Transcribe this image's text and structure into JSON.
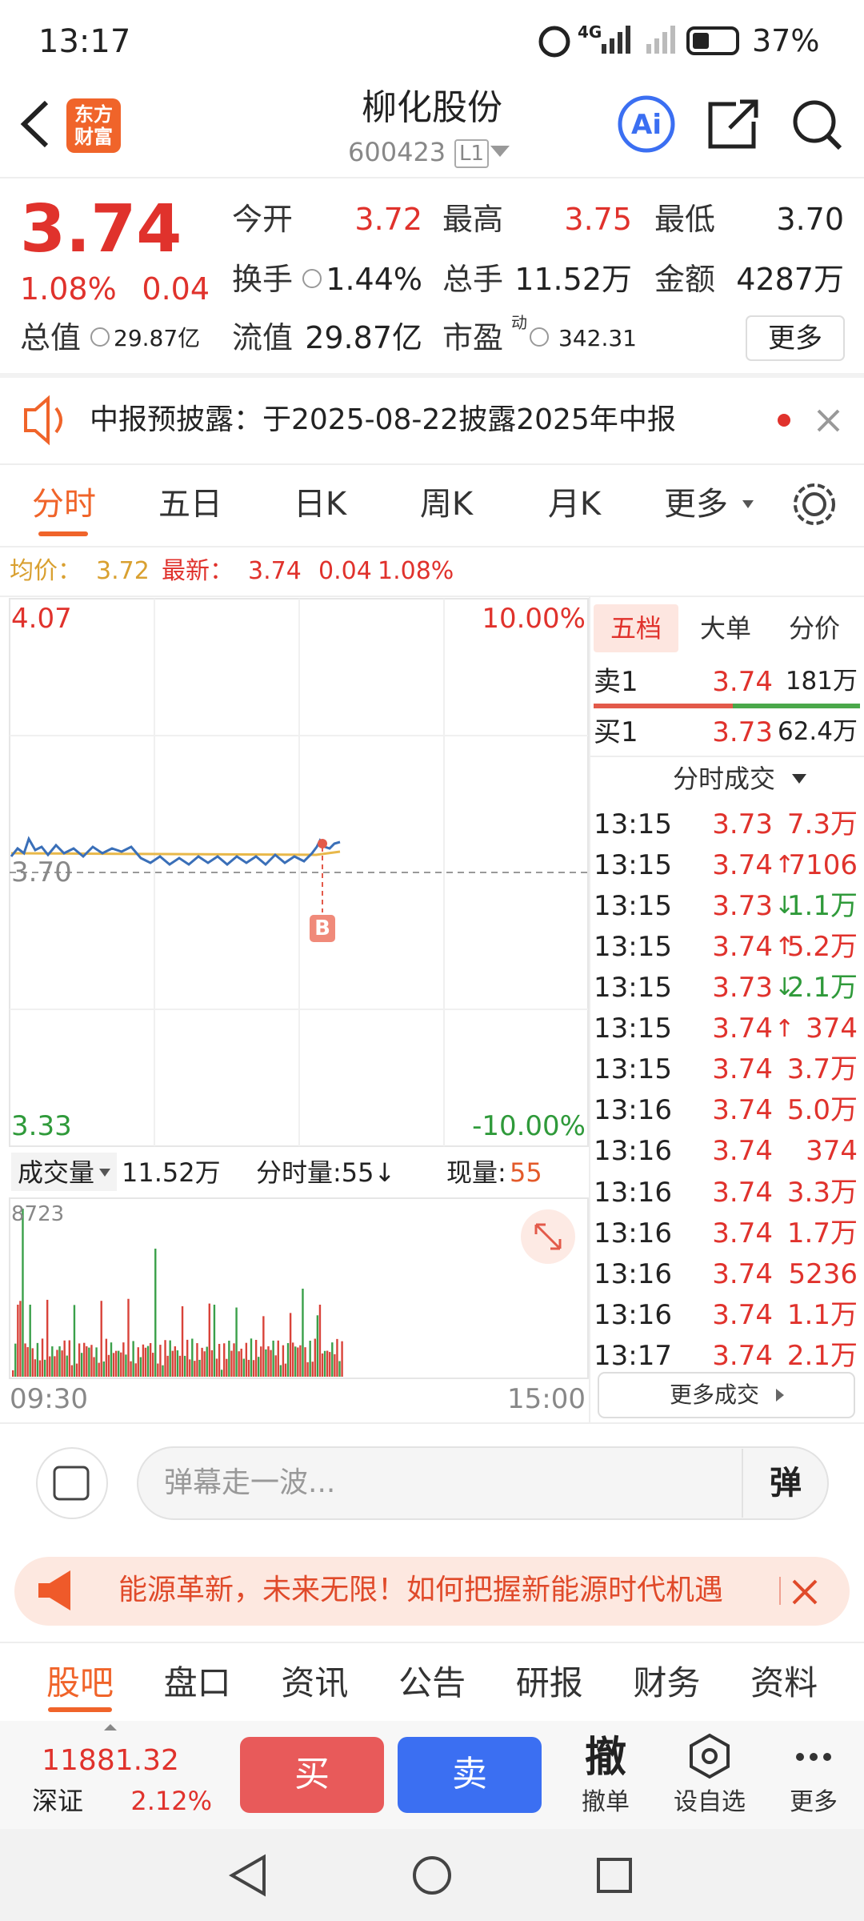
{
  "status_bar": {
    "time": "13:17",
    "network": "4G",
    "battery": "37%"
  },
  "header": {
    "logo": "东方财富",
    "title": "柳化股份",
    "code": "600423",
    "level": "L1"
  },
  "quote": {
    "price": "3.74",
    "change_pct": "1.08%",
    "change": "0.04",
    "fields": [
      {
        "label": "今开",
        "value": "3.72"
      },
      {
        "label": "最高",
        "value": "3.75"
      },
      {
        "label": "最低",
        "value": "3.70"
      },
      {
        "label": "换手",
        "value": "1.44%"
      },
      {
        "label": "总手",
        "value": "11.52万"
      },
      {
        "label": "金额",
        "value": "4287万"
      },
      {
        "label": "总值",
        "value": "29.87亿"
      },
      {
        "label": "流值",
        "value": "29.87亿"
      },
      {
        "label": "市盈",
        "sup": "动",
        "value": "342.31"
      }
    ],
    "more": "更多"
  },
  "notice": "中报预披露：于2025-08-22披露2025年中报",
  "tabs": [
    "分时",
    "五日",
    "日K",
    "周K",
    "月K",
    "更多"
  ],
  "summary": {
    "avg_label": "均价：",
    "avg": "3.72",
    "latest_label": "最新：",
    "latest": "3.74",
    "change": "0.04",
    "pct": "1.08%"
  },
  "chart": {
    "y_top": "4.07",
    "y_mid": "3.70",
    "y_bottom": "3.33",
    "pct_top": "10.00%",
    "pct_bottom": "-10.00%",
    "marker": "B",
    "volume_label": "成交量",
    "volume": "11.52万",
    "interval": "分时量:55↓",
    "current_label": "现量:",
    "current": "55",
    "vol_max": "8723",
    "x_start": "09:30",
    "x_end": "15:00"
  },
  "order_book": {
    "tabs": [
      "五档",
      "大单",
      "分价"
    ],
    "sell": {
      "label": "卖1",
      "price": "3.74",
      "volume": "181万"
    },
    "buy": {
      "label": "买1",
      "price": "3.73",
      "volume": "62.4万"
    },
    "trades_title": "分时成交",
    "trades": [
      {
        "time": "13:15",
        "price": "3.73",
        "volume": "7.3万"
      },
      {
        "time": "13:15",
        "price": "3.74",
        "arrow": "↑",
        "volume": "7106"
      },
      {
        "time": "13:15",
        "price": "3.73",
        "arrow": "↓",
        "volume": "1.1万"
      },
      {
        "time": "13:15",
        "price": "3.74",
        "arrow": "↑",
        "volume": "5.2万"
      },
      {
        "time": "13:15",
        "price": "3.73",
        "arrow": "↓",
        "volume": "2.1万"
      },
      {
        "time": "13:15",
        "price": "3.74",
        "arrow": "↑",
        "volume": "374"
      },
      {
        "time": "13:15",
        "price": "3.74",
        "volume": "3.7万"
      },
      {
        "time": "13:16",
        "price": "3.74",
        "volume": "5.0万"
      },
      {
        "time": "13:16",
        "price": "3.74",
        "volume": "374"
      },
      {
        "time": "13:16",
        "price": "3.74",
        "volume": "3.3万"
      },
      {
        "time": "13:16",
        "price": "3.74",
        "volume": "1.7万"
      },
      {
        "time": "13:16",
        "price": "3.74",
        "volume": "5236"
      },
      {
        "time": "13:16",
        "price": "3.74",
        "volume": "1.1万"
      },
      {
        "time": "13:17",
        "price": "3.74",
        "volume": "2.1万"
      }
    ],
    "more": "更多成交"
  },
  "danmaku": {
    "placeholder": "弹幕走一波...",
    "button": "弹"
  },
  "banner": "能源革新，未来无限！如何把握新能源时代机遇",
  "bottom_tabs": [
    "股吧",
    "盘口",
    "资讯",
    "公告",
    "研报",
    "财务",
    "资料"
  ],
  "footer": {
    "index_value": "11881.32",
    "index_name": "深证",
    "index_pct": "2.12%",
    "buy": "买",
    "sell": "卖",
    "actions": [
      {
        "icon": "撤",
        "label": "撤单"
      },
      {
        "label": "设自选"
      },
      {
        "label": "更多"
      }
    ]
  }
}
